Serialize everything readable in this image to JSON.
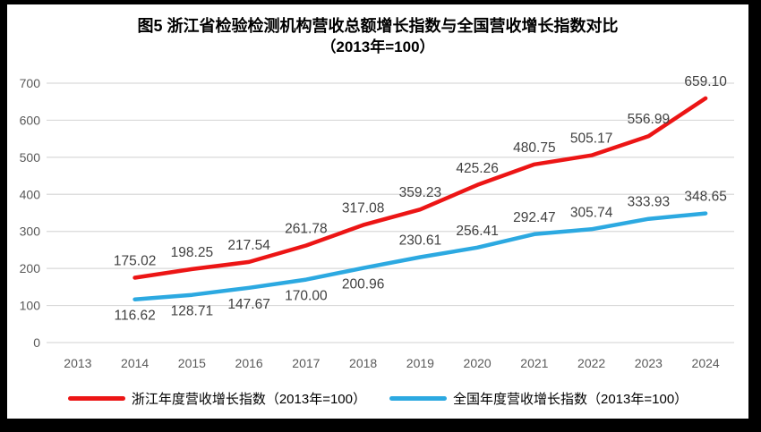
{
  "title": {
    "line1": "图5  浙江省检验检测机构营收总额增长指数与全国营收增长指数对比",
    "line2": "（2013年=100）"
  },
  "chart_data": {
    "type": "line",
    "title": "图5  浙江省检验检测机构营收总额增长指数与全国营收增长指数对比",
    "subtitle": "（2013年=100）",
    "categories": [
      "2013",
      "2014",
      "2015",
      "2016",
      "2017",
      "2018",
      "2019",
      "2020",
      "2021",
      "2022",
      "2023",
      "2024"
    ],
    "series": [
      {
        "name": "浙江年度营收增长指数（2013年=100）",
        "color": "#EC1515",
        "values": [
          null,
          175.02,
          198.25,
          217.54,
          261.78,
          317.08,
          359.23,
          425.26,
          480.75,
          505.17,
          556.99,
          659.1
        ],
        "label_positions": [
          null,
          "above",
          "above",
          "above",
          "above",
          "above",
          "above",
          "above",
          "above",
          "above",
          "above",
          "above"
        ]
      },
      {
        "name": "全国年度营收增长指数（2013年=100）",
        "color": "#2CA9E1",
        "values": [
          null,
          116.62,
          128.71,
          147.67,
          170.0,
          200.96,
          230.61,
          256.41,
          292.47,
          305.74,
          333.93,
          348.65
        ],
        "label_positions": [
          null,
          "below",
          "below",
          "below",
          "below",
          "below",
          "above",
          "above",
          "above",
          "above",
          "above",
          "above"
        ]
      }
    ],
    "ylim": [
      0,
      700
    ],
    "ytick_step": 100,
    "yticks": [
      0,
      100,
      200,
      300,
      400,
      500,
      600,
      700
    ],
    "grid": true,
    "legend_position": "bottom",
    "colors": {
      "axis_label": "#595959",
      "gridline": "#D9D9D9",
      "data_label": "#404040",
      "frame_border": "#000000",
      "background": "#FFFFFF"
    }
  }
}
